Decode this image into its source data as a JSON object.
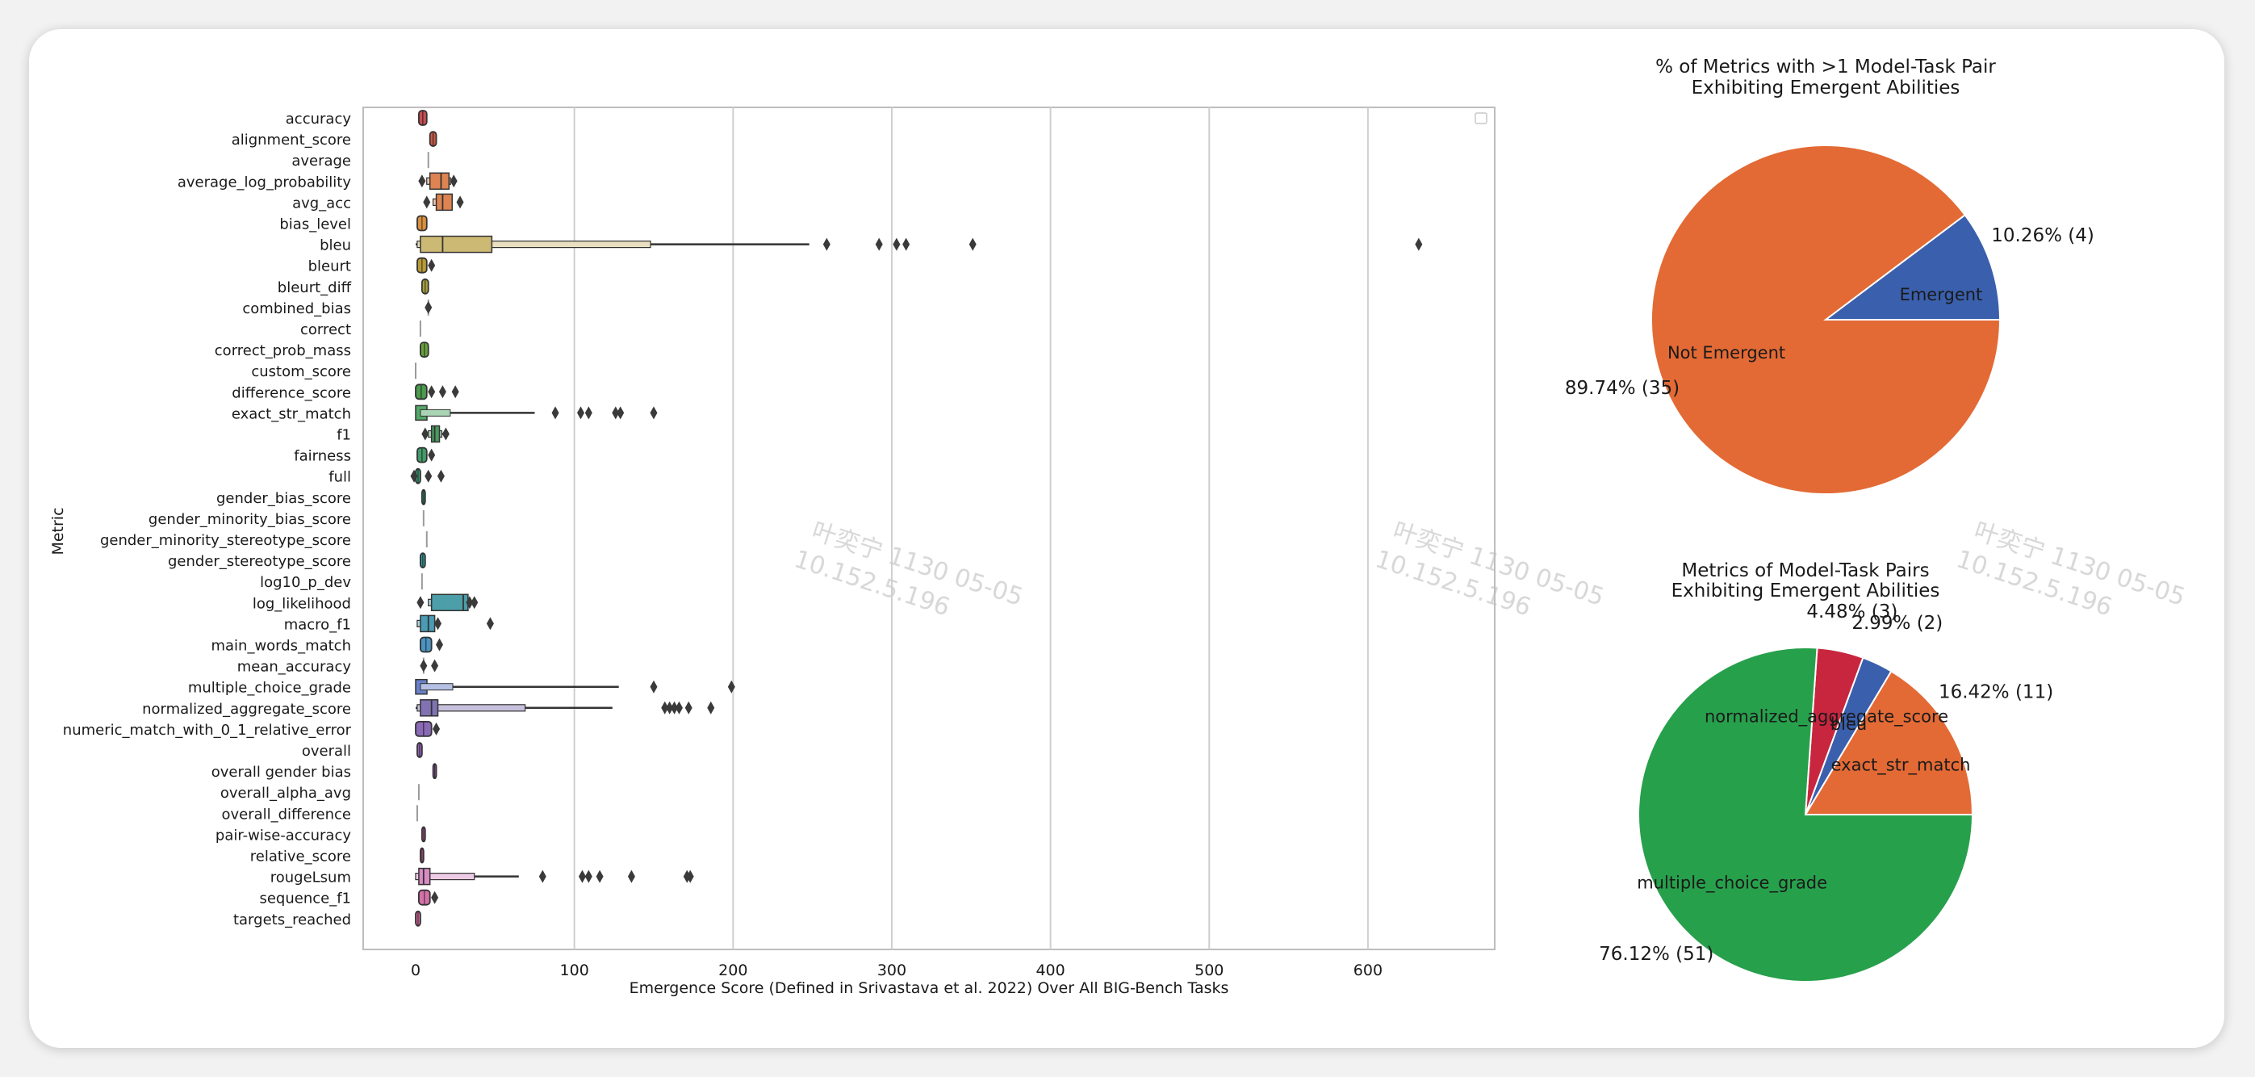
{
  "chart_data": [
    {
      "type": "boxen",
      "orientation": "horizontal",
      "xlabel": "Emergence Score (Defined in Srivastava et al. 2022) Over All BIG-Bench Tasks",
      "ylabel": "Metric",
      "xlim": [
        -30,
        665
      ],
      "xticks": [
        0,
        100,
        200,
        300,
        400,
        500,
        600
      ],
      "grid": "vertical",
      "legend": "empty, top-right",
      "categories": [
        {
          "name": "accuracy",
          "color": "#c44e52",
          "min": 2,
          "max": 7,
          "outliers": []
        },
        {
          "name": "alignment_score",
          "color": "#c95a49",
          "min": 9,
          "max": 13,
          "outliers": []
        },
        {
          "name": "average",
          "color": "#cc6640",
          "min": 8,
          "max": 8,
          "outliers": []
        },
        {
          "name": "average_log_probability",
          "color": "#dd8452",
          "min": 7,
          "max": 23,
          "q1": 9,
          "median": 16,
          "q3": 21,
          "outliers": [
            4,
            24
          ]
        },
        {
          "name": "avg_acc",
          "color": "#dd8452",
          "min": 12,
          "max": 23,
          "q1": 13,
          "median": 17,
          "q3": 23,
          "outliers": [
            7,
            28
          ]
        },
        {
          "name": "bias_level",
          "color": "#d99040",
          "min": 1,
          "max": 7,
          "outliers": []
        },
        {
          "name": "bleu",
          "color": "#ccb974",
          "min": 0,
          "max": 248,
          "q1": 3,
          "median": 17,
          "q3": 48,
          "outliers": [
            259,
            292,
            303,
            309,
            351,
            632
          ]
        },
        {
          "name": "bleurt",
          "color": "#b89a3a",
          "min": 1,
          "max": 7,
          "outliers": [
            10
          ]
        },
        {
          "name": "bleurt_diff",
          "color": "#a8a040",
          "min": 4,
          "max": 8,
          "outliers": []
        },
        {
          "name": "combined_bias",
          "color": "#8aa040",
          "min": 8,
          "max": 8,
          "outliers": [
            8
          ]
        },
        {
          "name": "correct",
          "color": "#7aa040",
          "min": 3,
          "max": 3,
          "outliers": []
        },
        {
          "name": "correct_prob_mass",
          "color": "#6aa040",
          "min": 3,
          "max": 8,
          "outliers": []
        },
        {
          "name": "custom_score",
          "color": "#5aa050",
          "min": 0,
          "max": 1,
          "outliers": []
        },
        {
          "name": "difference_score",
          "color": "#4d9a50",
          "min": 0,
          "max": 7,
          "outliers": [
            10,
            17,
            25
          ]
        },
        {
          "name": "exact_str_match",
          "color": "#55a868",
          "min": 0,
          "max": 75,
          "outliers": [
            88,
            104,
            109,
            126,
            129,
            150
          ]
        },
        {
          "name": "f1",
          "color": "#4a9a60",
          "min": 9,
          "max": 18,
          "q1": 10,
          "median": 12,
          "q3": 15,
          "outliers": [
            19,
            6
          ]
        },
        {
          "name": "fairness",
          "color": "#449a6a",
          "min": 1,
          "max": 7,
          "outliers": [
            10
          ]
        },
        {
          "name": "full",
          "color": "#409a75",
          "min": 0,
          "max": 3,
          "outliers": [
            -1,
            8,
            16
          ]
        },
        {
          "name": "gender_bias_score",
          "color": "#3d9a80",
          "min": 4,
          "max": 6,
          "outliers": []
        },
        {
          "name": "gender_minority_bias_score",
          "color": "#3b9a88",
          "min": 5,
          "max": 5,
          "outliers": []
        },
        {
          "name": "gender_minority_stereotype_score",
          "color": "#3a9a90",
          "min": 7,
          "max": 7,
          "outliers": []
        },
        {
          "name": "gender_stereotype_score",
          "color": "#3a9898",
          "min": 3,
          "max": 6,
          "outliers": []
        },
        {
          "name": "log10_p_dev",
          "color": "#3a96a0",
          "min": 4,
          "max": 4,
          "outliers": []
        },
        {
          "name": "log_likelihood",
          "color": "#4c9ea9",
          "min": 10,
          "max": 33,
          "q1": 10,
          "median": 30,
          "q3": 33,
          "outliers": [
            3,
            34,
            37
          ]
        },
        {
          "name": "macro_f1",
          "color": "#4a9cb5",
          "min": 1,
          "max": 12,
          "q1": 3,
          "median": 8,
          "q3": 12,
          "outliers": [
            14,
            47
          ]
        },
        {
          "name": "main_words_match",
          "color": "#4c93bf",
          "min": 3,
          "max": 10,
          "outliers": [
            15
          ]
        },
        {
          "name": "mean_accuracy",
          "color": "#5a87c4",
          "min": 5,
          "max": 5,
          "outliers": [
            5,
            12
          ]
        },
        {
          "name": "multiple_choice_grade",
          "color": "#6a80c8",
          "min": 0,
          "max": 128,
          "outliers": [
            150,
            199
          ]
        },
        {
          "name": "normalized_aggregate_score",
          "color": "#8172b3",
          "min": 0,
          "max": 124,
          "q1": 3,
          "median": 10,
          "q3": 14,
          "outliers": [
            157,
            160,
            163,
            166,
            172,
            186
          ]
        },
        {
          "name": "numeric_match_with_0_1_relative_error",
          "color": "#8a6ab5",
          "min": 0,
          "max": 10,
          "outliers": [
            13
          ]
        },
        {
          "name": "overall",
          "color": "#9467b5",
          "min": 1,
          "max": 4,
          "outliers": []
        },
        {
          "name": "overall gender bias",
          "color": "#a066b0",
          "min": 11,
          "max": 13,
          "outliers": []
        },
        {
          "name": "overall_alpha_avg",
          "color": "#ac64aa",
          "min": 2,
          "max": 2,
          "outliers": []
        },
        {
          "name": "overall_difference",
          "color": "#b863a5",
          "min": 1,
          "max": 1,
          "outliers": []
        },
        {
          "name": "pair-wise-accuracy",
          "color": "#c462a0",
          "min": 4,
          "max": 6,
          "outliers": []
        },
        {
          "name": "relative_score",
          "color": "#ce62a0",
          "min": 3,
          "max": 5,
          "outliers": []
        },
        {
          "name": "rougeLsum",
          "color": "#da8bc3",
          "min": 0,
          "max": 65,
          "q1": 2,
          "median": 5,
          "q3": 9,
          "outliers": [
            80,
            105,
            109,
            116,
            136,
            171,
            173
          ]
        },
        {
          "name": "sequence_f1",
          "color": "#d372a8",
          "min": 2,
          "max": 9,
          "outliers": [
            12
          ]
        },
        {
          "name": "targets_reached",
          "color": "#cc6a98",
          "min": 0,
          "max": 3,
          "outliers": []
        }
      ]
    },
    {
      "type": "pie",
      "title": "% of Metrics with >1 Model-Task Pair\nExhibiting Emergent Abilities",
      "slices": [
        {
          "label": "Emergent",
          "value": 4,
          "pct_label": "10.26%  (4)",
          "color": "#3a5fad"
        },
        {
          "label": "Not Emergent",
          "value": 35,
          "pct_label": "89.74%  (35)",
          "color": "#e36a35"
        }
      ]
    },
    {
      "type": "pie",
      "title": "Metrics of Model-Task Pairs\nExhibiting Emergent Abilities",
      "slices": [
        {
          "label": "exact_str_match",
          "value": 11,
          "pct_label": "16.42%  (11)",
          "color": "#e36a35"
        },
        {
          "label": "bleu",
          "value": 2,
          "pct_label": "2.99%  (2)",
          "color": "#3a5fad"
        },
        {
          "label": "normalized_aggregate_score",
          "value": 3,
          "pct_label": "4.48%  (3)",
          "color": "#c8263f"
        },
        {
          "label": "multiple_choice_grade",
          "value": 51,
          "pct_label": "76.12%  (51)",
          "color": "#27a04c"
        }
      ]
    }
  ],
  "watermark": {
    "line1": "叶奕宁 1130 05-05",
    "line2": "10.152.5.196"
  }
}
